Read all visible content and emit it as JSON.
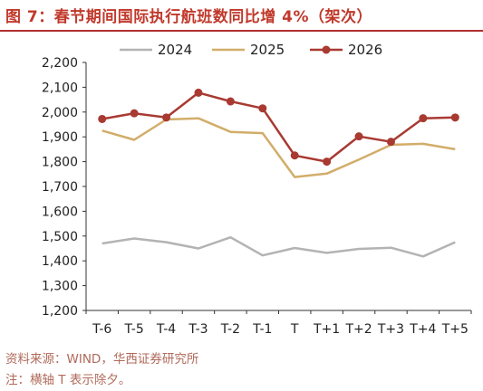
{
  "figure": {
    "title": "图 7：春节期间国际执行航班数同比增 4%（架次）",
    "source": "资料来源：WIND，华西证券研究所",
    "note": "注：横轴 T 表示除夕。"
  },
  "chart_data": {
    "type": "line",
    "title": "",
    "xlabel": "",
    "ylabel": "",
    "categories": [
      "T-6",
      "T-5",
      "T-4",
      "T-3",
      "T-2",
      "T-1",
      "T",
      "T+1",
      "T+2",
      "T+3",
      "T+4",
      "T+5"
    ],
    "ylim": [
      1200,
      2200
    ],
    "yticks": [
      1200,
      1300,
      1400,
      1500,
      1600,
      1700,
      1800,
      1900,
      2000,
      2100,
      2200
    ],
    "ytick_labels": [
      "1,200",
      "1,300",
      "1,400",
      "1,500",
      "1,600",
      "1,700",
      "1,800",
      "1,900",
      "2,000",
      "2,100",
      "2,200"
    ],
    "grid": false,
    "legend_position": "top",
    "series": [
      {
        "name": "2024",
        "color": "#b3b3b3",
        "marker": "none",
        "values": [
          1470,
          1490,
          1475,
          1450,
          1495,
          1422,
          1452,
          1432,
          1448,
          1453,
          1418,
          1475
        ]
      },
      {
        "name": "2025",
        "color": "#d2ad6a",
        "marker": "none",
        "values": [
          1925,
          1888,
          1970,
          1975,
          1920,
          1915,
          1738,
          1752,
          1808,
          1868,
          1872,
          1850
        ]
      },
      {
        "name": "2026",
        "color": "#a83a32",
        "marker": "circle",
        "values": [
          1972,
          1995,
          1978,
          2078,
          2043,
          2015,
          1825,
          1800,
          1902,
          1880,
          1975,
          1978
        ]
      }
    ]
  }
}
